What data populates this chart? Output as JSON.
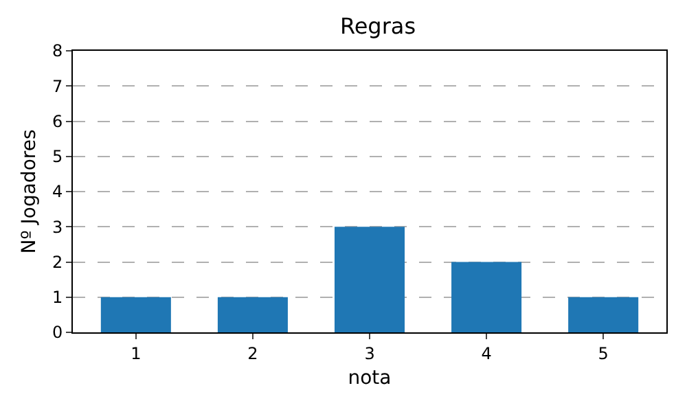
{
  "chart_data": {
    "type": "bar",
    "title": "Regras",
    "xlabel": "nota",
    "ylabel": "Nº Jogadores",
    "categories": [
      "1",
      "2",
      "3",
      "4",
      "5"
    ],
    "values": [
      1,
      1,
      3,
      2,
      1
    ],
    "color": "#1f77b4",
    "ylim": [
      0,
      8
    ],
    "yticks": [
      0,
      1,
      2,
      3,
      4,
      5,
      6,
      7,
      8
    ],
    "grid": "y"
  }
}
